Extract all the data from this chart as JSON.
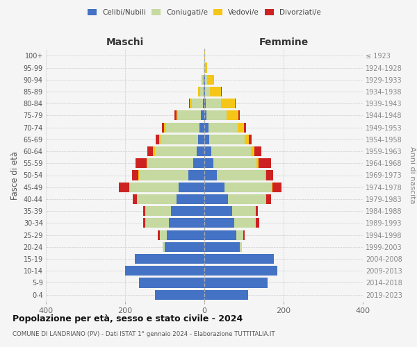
{
  "age_groups": [
    "0-4",
    "5-9",
    "10-14",
    "15-19",
    "20-24",
    "25-29",
    "30-34",
    "35-39",
    "40-44",
    "45-49",
    "50-54",
    "55-59",
    "60-64",
    "65-69",
    "70-74",
    "75-79",
    "80-84",
    "85-89",
    "90-94",
    "95-99",
    "100+"
  ],
  "birth_years": [
    "2019-2023",
    "2014-2018",
    "2009-2013",
    "2004-2008",
    "1999-2003",
    "1994-1998",
    "1989-1993",
    "1984-1988",
    "1979-1983",
    "1974-1978",
    "1969-1973",
    "1964-1968",
    "1959-1963",
    "1954-1958",
    "1949-1953",
    "1944-1948",
    "1939-1943",
    "1934-1938",
    "1929-1933",
    "1924-1928",
    "≤ 1923"
  ],
  "maschi": {
    "celibi": [
      125,
      165,
      200,
      175,
      100,
      95,
      90,
      85,
      70,
      65,
      40,
      28,
      20,
      15,
      12,
      8,
      4,
      2,
      1,
      0,
      0
    ],
    "coniugati": [
      0,
      0,
      0,
      0,
      5,
      18,
      60,
      65,
      100,
      125,
      125,
      115,
      105,
      95,
      85,
      58,
      28,
      8,
      4,
      1,
      0
    ],
    "vedovi": [
      0,
      0,
      0,
      0,
      0,
      0,
      0,
      0,
      0,
      0,
      2,
      2,
      4,
      4,
      5,
      5,
      5,
      5,
      2,
      0,
      0
    ],
    "divorziati": [
      0,
      0,
      0,
      0,
      0,
      4,
      5,
      5,
      10,
      25,
      15,
      28,
      15,
      8,
      5,
      4,
      2,
      1,
      0,
      0,
      0
    ]
  },
  "femmine": {
    "nubili": [
      110,
      160,
      185,
      175,
      90,
      80,
      75,
      70,
      60,
      50,
      32,
      22,
      18,
      12,
      10,
      6,
      4,
      2,
      1,
      0,
      0
    ],
    "coniugate": [
      0,
      0,
      0,
      0,
      5,
      18,
      55,
      60,
      95,
      120,
      120,
      110,
      100,
      90,
      75,
      50,
      38,
      12,
      6,
      2,
      0
    ],
    "vedove": [
      0,
      0,
      0,
      0,
      0,
      0,
      0,
      0,
      2,
      2,
      4,
      5,
      8,
      10,
      15,
      30,
      35,
      28,
      18,
      5,
      1
    ],
    "divorziate": [
      0,
      0,
      0,
      0,
      0,
      4,
      8,
      5,
      12,
      22,
      18,
      32,
      18,
      8,
      5,
      4,
      2,
      1,
      0,
      0,
      0
    ]
  },
  "colors": {
    "celibi_nubili": "#4472c4",
    "coniugati": "#c5d9a0",
    "vedovi": "#f5c518",
    "divorziati": "#cc2222"
  },
  "xlim": 400,
  "title": "Popolazione per età, sesso e stato civile - 2024",
  "subtitle": "COMUNE DI LANDRIANO (PV) - Dati ISTAT 1° gennaio 2024 - Elaborazione TUTTITALIA.IT",
  "ylabel_left": "Fasce di età",
  "ylabel_right": "Anni di nascita",
  "xlabel_maschi": "Maschi",
  "xlabel_femmine": "Femmine",
  "bg_color": "#f5f5f5",
  "grid_color": "#cccccc"
}
